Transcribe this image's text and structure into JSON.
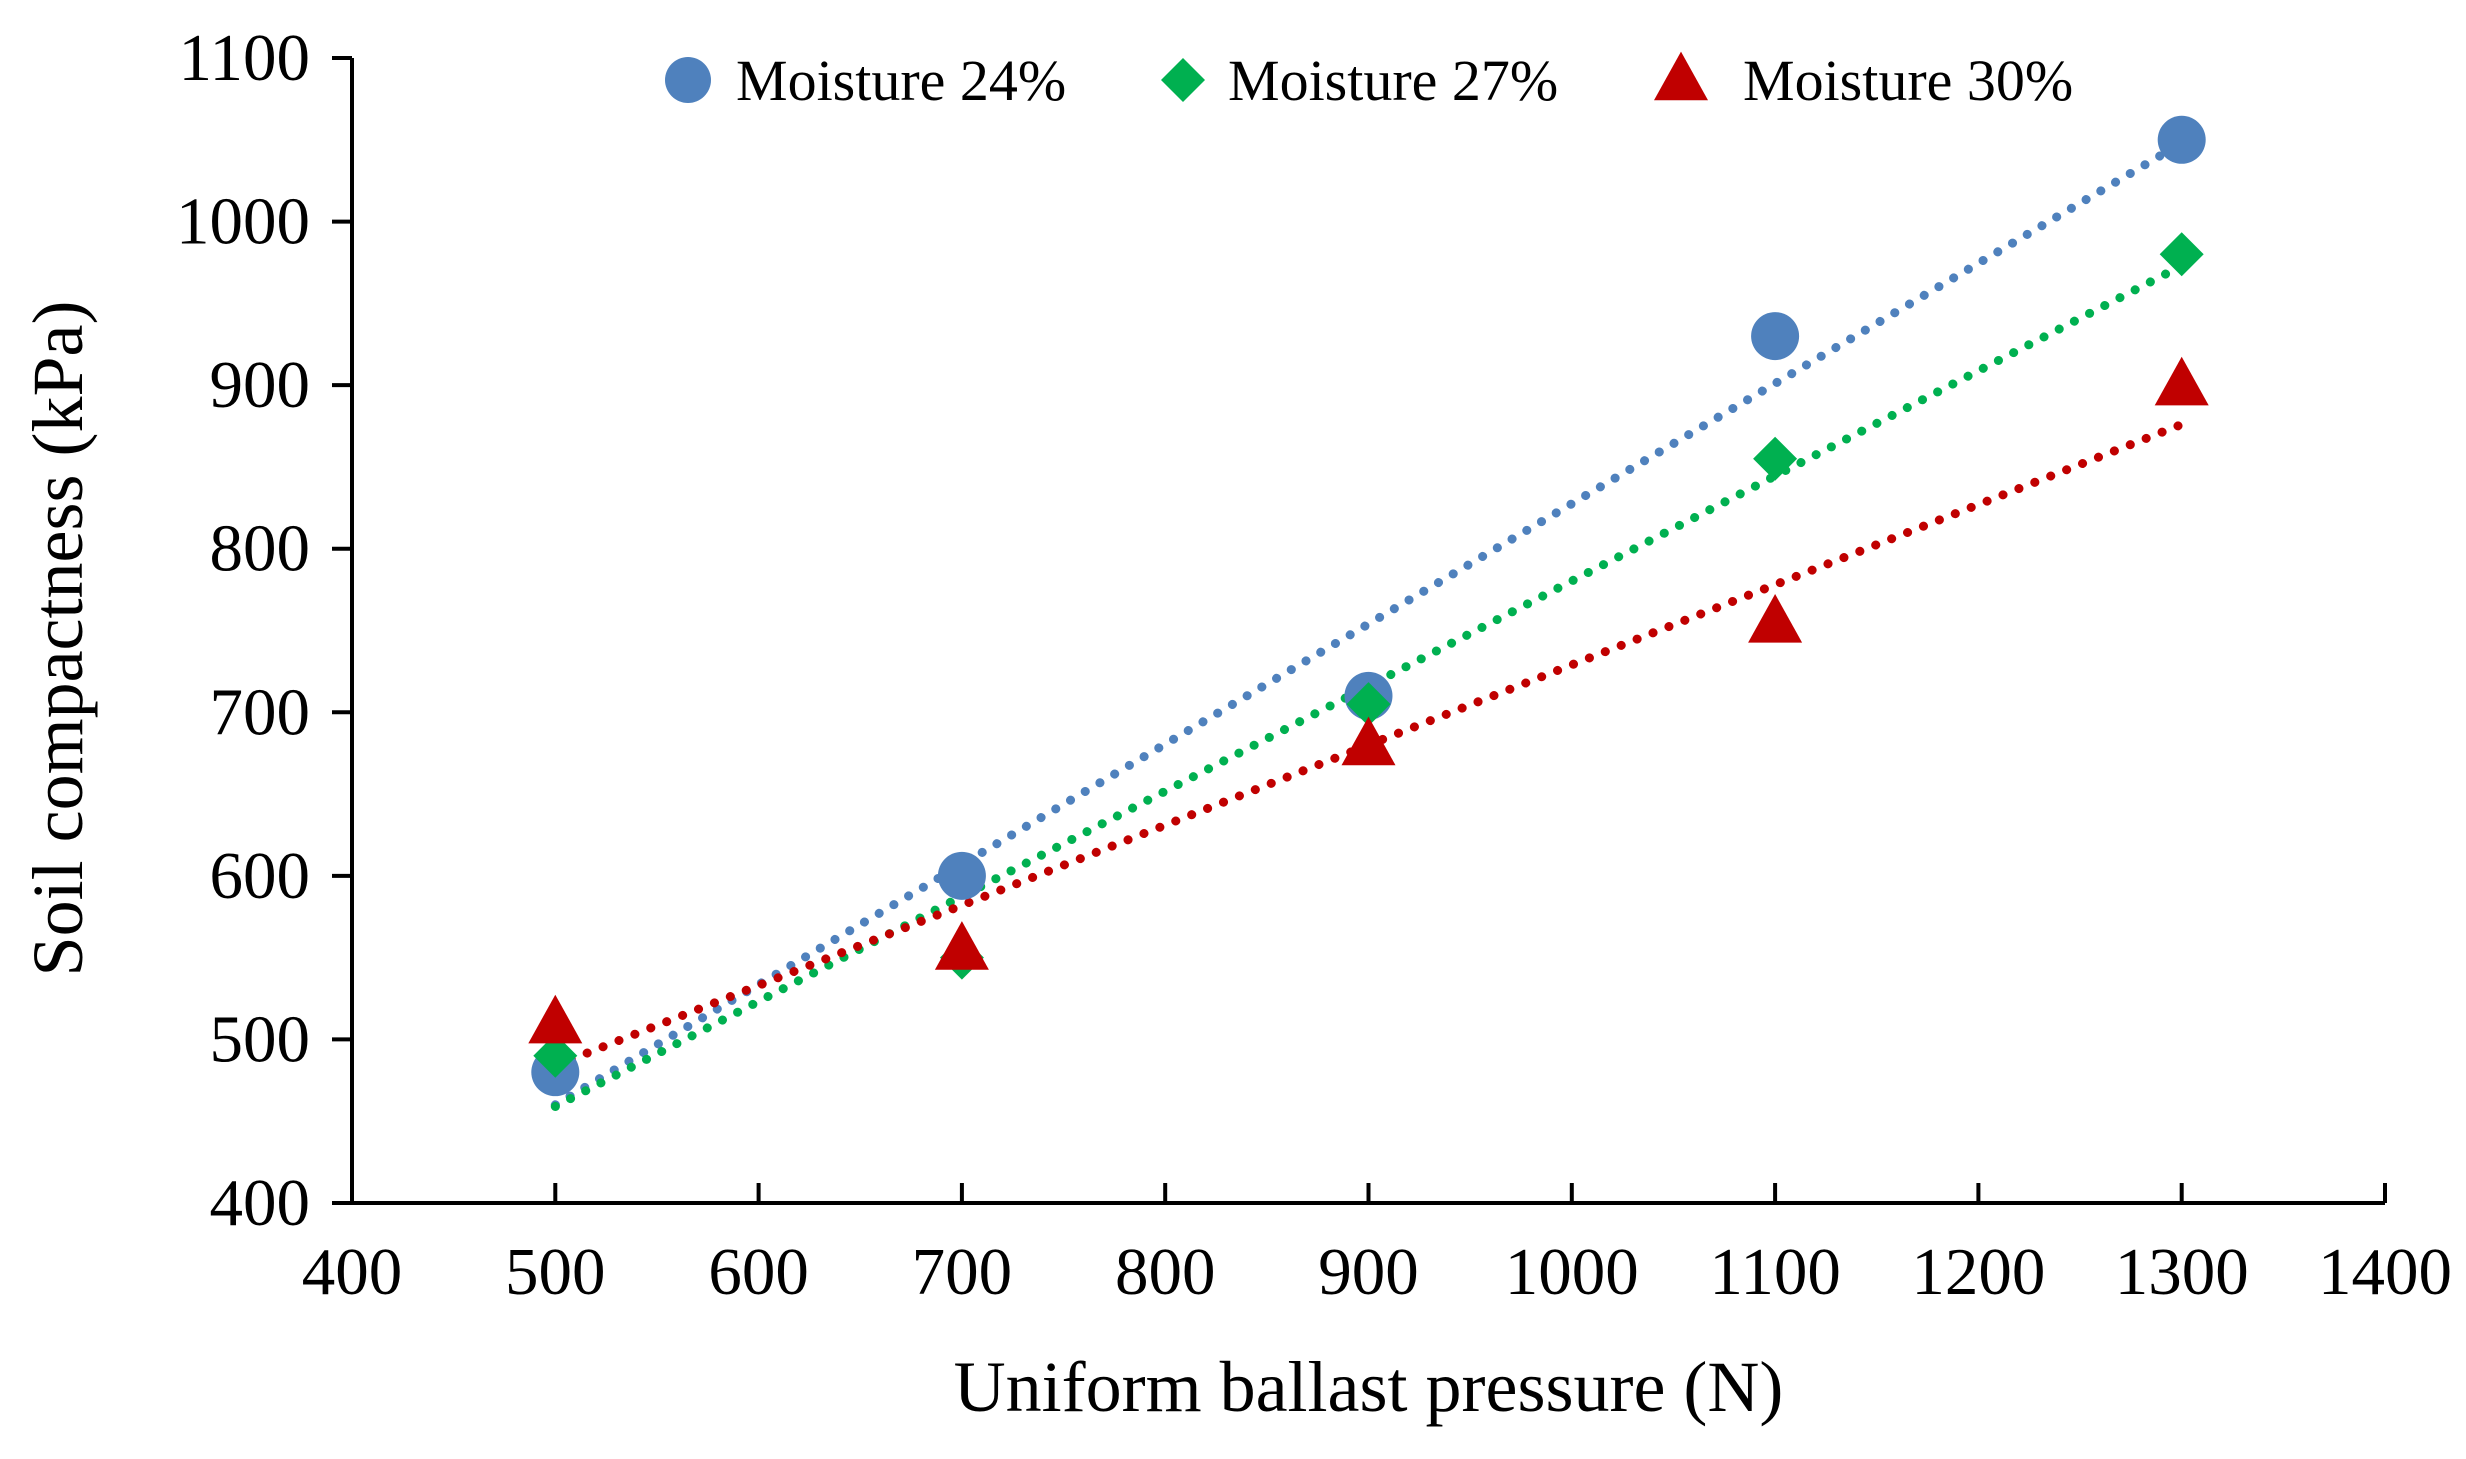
{
  "chart_data": {
    "type": "scatter",
    "title": "",
    "xlabel": "Uniform ballast pressure (N)",
    "ylabel": "Soil compactness (kPa)",
    "xlim": [
      400,
      1400
    ],
    "ylim": [
      400,
      1100
    ],
    "xticks": [
      400,
      500,
      600,
      700,
      800,
      900,
      1000,
      1100,
      1200,
      1300,
      1400
    ],
    "yticks": [
      400,
      500,
      600,
      700,
      800,
      900,
      1000,
      1100
    ],
    "grid": false,
    "legend_position": "top",
    "series": [
      {
        "name": "Moisture 24%",
        "marker": "circle",
        "color": "#4F81BD",
        "trendline": "dotted",
        "x": [
          500,
          700,
          900,
          1100,
          1300
        ],
        "y": [
          480,
          600,
          710,
          930,
          1050
        ]
      },
      {
        "name": "Moisture 27%",
        "marker": "diamond",
        "color": "#00B050",
        "trendline": "dotted",
        "x": [
          500,
          700,
          900,
          1100,
          1300
        ],
        "y": [
          490,
          550,
          705,
          855,
          980
        ]
      },
      {
        "name": "Moisture 30%",
        "marker": "triangle",
        "color": "#C00000",
        "trendline": "dotted",
        "x": [
          500,
          700,
          900,
          1100,
          1300
        ],
        "y": [
          510,
          555,
          680,
          755,
          900
        ]
      }
    ]
  }
}
